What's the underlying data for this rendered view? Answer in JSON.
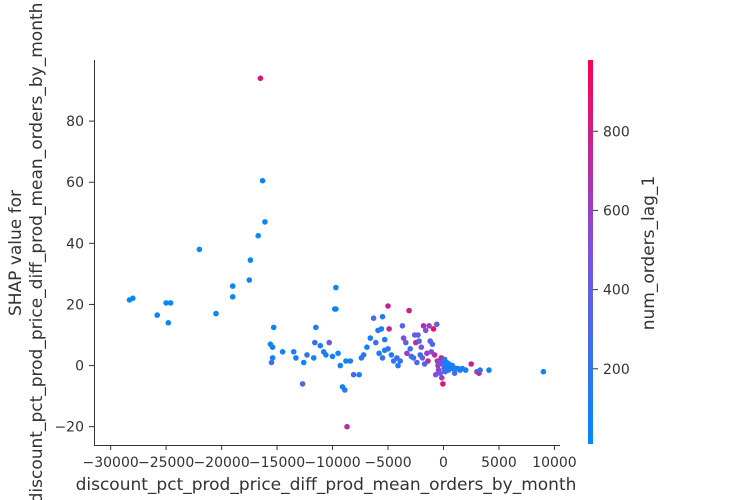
{
  "chart_data": {
    "type": "scatter",
    "xlabel": "discount_pct_prod_price_diff_prod_mean_orders_by_month",
    "ylabel": "SHAP value for\ndiscount_pct_prod_price_diff_prod_mean_orders_by_month",
    "xlim": [
      -31500,
      10500
    ],
    "ylim": [
      -26,
      100
    ],
    "xticks": [
      -30000,
      -25000,
      -20000,
      -15000,
      -10000,
      -5000,
      0,
      5000,
      10000
    ],
    "xtick_labels": [
      "−30000",
      "−25000",
      "−20000",
      "−15000",
      "−10000",
      "−5000",
      "0",
      "5000",
      "10000"
    ],
    "yticks": [
      -20,
      0,
      20,
      40,
      60,
      80
    ],
    "ytick_labels": [
      "−20",
      "0",
      "20",
      "40",
      "60",
      "80"
    ],
    "grid": false,
    "colorbar": {
      "label": "num_orders_lag_1",
      "range": [
        10,
        980
      ],
      "ticks": [
        200,
        400,
        600,
        800
      ],
      "tick_labels": [
        "200",
        "400",
        "600",
        "800"
      ],
      "low_color": "#008afb",
      "mid_color": "#7c52e0",
      "high_color": "#ff0052"
    },
    "points": [
      [
        -16500,
        94,
        870
      ],
      [
        -16300,
        60.5,
        80
      ],
      [
        -16100,
        47,
        60
      ],
      [
        -16700,
        42.5,
        70
      ],
      [
        -22000,
        38,
        40
      ],
      [
        -17400,
        34.5,
        60
      ],
      [
        -17500,
        28,
        50
      ],
      [
        -19000,
        26,
        40
      ],
      [
        -19000,
        22.5,
        40
      ],
      [
        -28000,
        22,
        30
      ],
      [
        -28300,
        21.5,
        30
      ],
      [
        -25000,
        20.5,
        40
      ],
      [
        -24600,
        20.5,
        40
      ],
      [
        -25800,
        16.5,
        50
      ],
      [
        -20500,
        17,
        50
      ],
      [
        -24800,
        14,
        40
      ],
      [
        -15300,
        12.5,
        60
      ],
      [
        -15600,
        7,
        80
      ],
      [
        -15400,
        6,
        80
      ],
      [
        -15400,
        2.5,
        60
      ],
      [
        -15500,
        1,
        300
      ],
      [
        -14500,
        4.5,
        100
      ],
      [
        -13500,
        4.5,
        100
      ],
      [
        -13300,
        2.5,
        120
      ],
      [
        -12700,
        -6,
        320
      ],
      [
        -12600,
        1,
        80
      ],
      [
        -12300,
        3.5,
        200
      ],
      [
        -11700,
        2.5,
        90
      ],
      [
        -11600,
        7.5,
        200
      ],
      [
        -11500,
        12.5,
        90
      ],
      [
        -11100,
        6.5,
        100
      ],
      [
        -10800,
        4.5,
        100
      ],
      [
        -10600,
        3.5,
        120
      ],
      [
        -10300,
        7.5,
        400
      ],
      [
        -10000,
        3,
        90
      ],
      [
        -9800,
        18.5,
        60
      ],
      [
        -9700,
        25.5,
        60
      ],
      [
        -9700,
        18.5,
        60
      ],
      [
        -9500,
        4,
        100
      ],
      [
        -9300,
        0,
        120
      ],
      [
        -9100,
        -7,
        100
      ],
      [
        -8900,
        -8,
        150
      ],
      [
        -8800,
        1.5,
        80
      ],
      [
        -8700,
        -20,
        720
      ],
      [
        -8400,
        1.5,
        90
      ],
      [
        -8100,
        -3,
        300
      ],
      [
        -7600,
        -3,
        100
      ],
      [
        -7400,
        2.5,
        120
      ],
      [
        -7200,
        3.5,
        200
      ],
      [
        -6900,
        6,
        90
      ],
      [
        -6600,
        9,
        90
      ],
      [
        -6300,
        15.5,
        300
      ],
      [
        -6100,
        7.5,
        300
      ],
      [
        -5900,
        11.5,
        150
      ],
      [
        -5600,
        12,
        100
      ],
      [
        -5500,
        16,
        100
      ],
      [
        -5300,
        8.5,
        100
      ],
      [
        -5000,
        19.5,
        800
      ],
      [
        -4900,
        12,
        750
      ],
      [
        -5800,
        4,
        120
      ],
      [
        -5500,
        2.5,
        200
      ],
      [
        -5300,
        5,
        150
      ],
      [
        -5000,
        5.5,
        200
      ],
      [
        -4700,
        3.5,
        150
      ],
      [
        -4500,
        1.5,
        200
      ],
      [
        -4200,
        2.5,
        250
      ],
      [
        -4100,
        0,
        120
      ],
      [
        -3900,
        1.5,
        200
      ],
      [
        -3700,
        13,
        350
      ],
      [
        -3600,
        9,
        500
      ],
      [
        -3400,
        7.5,
        400
      ],
      [
        -3300,
        4,
        600
      ],
      [
        -3100,
        18,
        800
      ],
      [
        -3000,
        5.5,
        200
      ],
      [
        -2900,
        3,
        300
      ],
      [
        -2700,
        2.5,
        250
      ],
      [
        -2600,
        10,
        400
      ],
      [
        -2500,
        7.5,
        700
      ],
      [
        -2400,
        1,
        300
      ],
      [
        -2300,
        10,
        400
      ],
      [
        -2200,
        8,
        350
      ],
      [
        -2100,
        3.5,
        250
      ],
      [
        -2000,
        6,
        500
      ],
      [
        -1900,
        2.5,
        400
      ],
      [
        -1800,
        13,
        700
      ],
      [
        -1700,
        0.5,
        300
      ],
      [
        -1600,
        11.5,
        500
      ],
      [
        -1500,
        4,
        600
      ],
      [
        -1400,
        1.5,
        700
      ],
      [
        -1300,
        13,
        600
      ],
      [
        -1200,
        8,
        400
      ],
      [
        -1100,
        4.5,
        500
      ],
      [
        -1000,
        7,
        300
      ],
      [
        -900,
        12,
        900
      ],
      [
        -800,
        3.5,
        700
      ],
      [
        -700,
        -3,
        500
      ],
      [
        -600,
        13.5,
        400
      ],
      [
        -550,
        1.5,
        700
      ],
      [
        -500,
        0,
        600
      ],
      [
        -450,
        -1.5,
        600
      ],
      [
        -400,
        1,
        500
      ],
      [
        -300,
        -2.5,
        400
      ],
      [
        -200,
        2.5,
        800
      ],
      [
        -150,
        -4,
        600
      ],
      [
        -100,
        0.5,
        500
      ],
      [
        -50,
        -6,
        850
      ],
      [
        0,
        1,
        300
      ],
      [
        50,
        -1,
        200
      ],
      [
        100,
        2,
        150
      ],
      [
        150,
        -2,
        300
      ],
      [
        200,
        0.5,
        100
      ],
      [
        250,
        -1,
        200
      ],
      [
        300,
        1,
        120
      ],
      [
        350,
        -0.5,
        100
      ],
      [
        400,
        0,
        120
      ],
      [
        450,
        -1.5,
        200
      ],
      [
        500,
        0.5,
        100
      ],
      [
        600,
        -1,
        150
      ],
      [
        650,
        0,
        100
      ],
      [
        700,
        -0.5,
        100
      ],
      [
        800,
        0,
        120
      ],
      [
        900,
        -1,
        100
      ],
      [
        1000,
        -2.5,
        250
      ],
      [
        1100,
        -1,
        150
      ],
      [
        1300,
        -1,
        100
      ],
      [
        1500,
        -1.5,
        100
      ],
      [
        1700,
        -1,
        80
      ],
      [
        2000,
        -1.5,
        100
      ],
      [
        2500,
        0.5,
        800
      ],
      [
        3000,
        -2,
        400
      ],
      [
        3200,
        -2.5,
        800
      ],
      [
        3300,
        -1.5,
        200
      ],
      [
        4100,
        -1.5,
        100
      ],
      [
        9000,
        -2,
        60
      ]
    ]
  }
}
